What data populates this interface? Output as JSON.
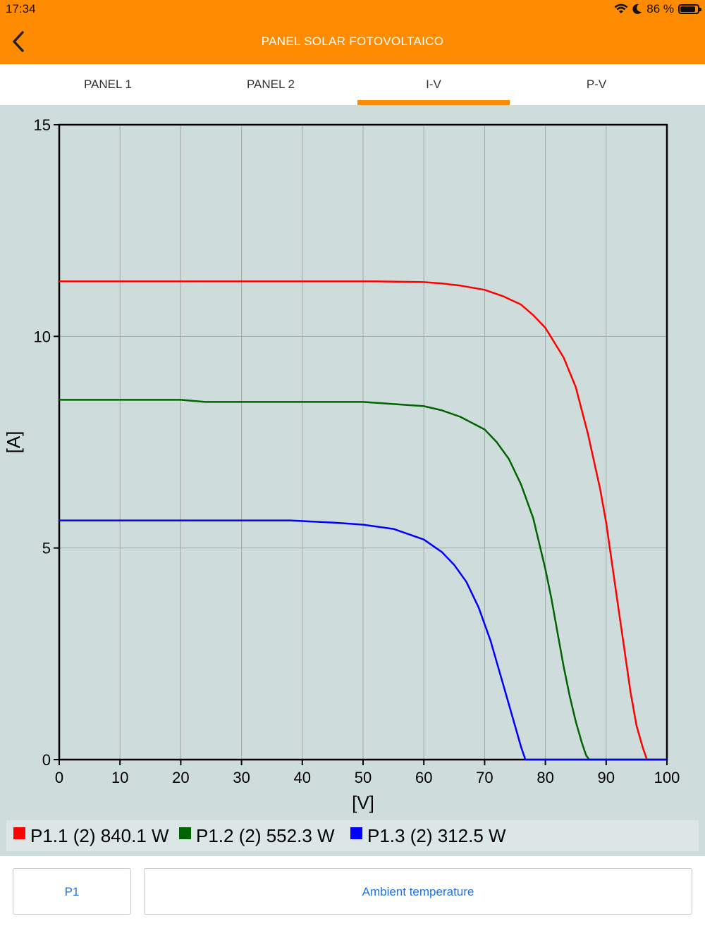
{
  "status": {
    "time": "17:34",
    "battery": "86 %",
    "battery_level": 0.86
  },
  "header": {
    "title": "PANEL SOLAR FOTOVOLTAICO"
  },
  "tabs": [
    {
      "label": "PANEL 1"
    },
    {
      "label": "PANEL 2"
    },
    {
      "label": "I-V"
    },
    {
      "label": "P-V"
    }
  ],
  "active_tab": "I-V",
  "chart_data": {
    "type": "line",
    "xlabel": "[V]",
    "ylabel": "[A]",
    "xlim": [
      0,
      100
    ],
    "ylim": [
      0,
      15
    ],
    "xticks": [
      "0",
      "10",
      "20",
      "30",
      "40",
      "50",
      "60",
      "70",
      "80",
      "90",
      "100"
    ],
    "yticks": [
      "0",
      "5",
      "10",
      "15"
    ],
    "grid": true,
    "legend_position": "bottom",
    "series": [
      {
        "name": "P1.1 (2) 840.1 W",
        "color": "#ff0000",
        "x": [
          0,
          10,
          20,
          30,
          40,
          50,
          52,
          60,
          63,
          66,
          70,
          73,
          76,
          78,
          80,
          83,
          85,
          87,
          89,
          90,
          91,
          92,
          93,
          94,
          95,
          96,
          96.7,
          100
        ],
        "y": [
          11.3,
          11.3,
          11.3,
          11.3,
          11.3,
          11.3,
          11.3,
          11.28,
          11.25,
          11.2,
          11.1,
          10.95,
          10.75,
          10.5,
          10.2,
          9.5,
          8.8,
          7.7,
          6.4,
          5.6,
          4.6,
          3.6,
          2.6,
          1.6,
          0.8,
          0.3,
          0,
          0
        ]
      },
      {
        "name": "P1.2 (2) 552.3 W",
        "color": "#006400",
        "x": [
          0,
          10,
          20,
          24,
          30,
          40,
          50,
          55,
          60,
          63,
          66,
          70,
          72,
          74,
          76,
          78,
          80,
          81,
          82,
          83,
          84,
          85,
          86,
          86.7,
          87.2,
          100
        ],
        "y": [
          8.5,
          8.5,
          8.5,
          8.45,
          8.45,
          8.45,
          8.45,
          8.4,
          8.35,
          8.25,
          8.1,
          7.8,
          7.5,
          7.1,
          6.5,
          5.7,
          4.5,
          3.8,
          3.0,
          2.2,
          1.5,
          0.9,
          0.4,
          0.1,
          0,
          0
        ]
      },
      {
        "name": "P1.3 (2) 312.5 W",
        "color": "#0000ff",
        "x": [
          0,
          10,
          20,
          30,
          38,
          45,
          50,
          55,
          60,
          63,
          65,
          67,
          69,
          70,
          71,
          72,
          73,
          74,
          75,
          76,
          76.7,
          100
        ],
        "y": [
          5.65,
          5.65,
          5.65,
          5.65,
          5.65,
          5.6,
          5.55,
          5.45,
          5.2,
          4.9,
          4.6,
          4.2,
          3.6,
          3.2,
          2.8,
          2.3,
          1.8,
          1.3,
          0.8,
          0.3,
          0,
          0
        ]
      }
    ]
  },
  "buttons": {
    "p1_label": "P1",
    "ambient_label": "Ambient temperature"
  }
}
